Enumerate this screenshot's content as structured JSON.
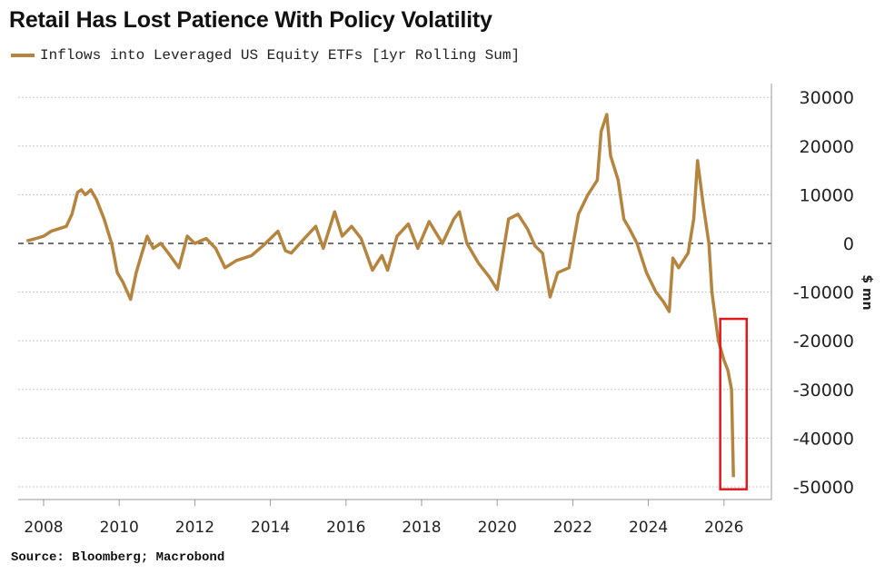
{
  "chart_data": {
    "type": "line",
    "title": "Retail Has Lost Patience With Policy Volatility",
    "legend": [
      "Inflows into Leveraged US Equity ETFs [1yr Rolling Sum]"
    ],
    "legend_placement": "top-left",
    "ylabel": "$ mn",
    "xlabel": "",
    "source": "Source: Bloomberg; Macrobond",
    "ylim": [
      -50000,
      30000
    ],
    "xlim": [
      2007.2,
      2027.1
    ],
    "yticks": [
      30000,
      20000,
      10000,
      0,
      -10000,
      -20000,
      -30000,
      -40000,
      -50000
    ],
    "xticks": [
      2008,
      2010,
      2012,
      2014,
      2016,
      2018,
      2020,
      2022,
      2024,
      2026
    ],
    "grid": true,
    "colors": {
      "series": "#b5853f",
      "highlight_box": "#e0191f"
    },
    "highlight_box": {
      "x_range": [
        2025.9,
        2026.6
      ],
      "y_range": [
        -50500,
        -15500
      ]
    },
    "series": [
      {
        "name": "Inflows into Leveraged US Equity ETFs [1yr Rolling Sum]",
        "x": [
          2007.55,
          2007.8,
          2008.0,
          2008.2,
          2008.4,
          2008.6,
          2008.75,
          2008.9,
          2009.0,
          2009.1,
          2009.25,
          2009.4,
          2009.6,
          2009.8,
          2009.95,
          2010.1,
          2010.3,
          2010.45,
          2010.6,
          2010.74,
          2010.9,
          2011.1,
          2011.3,
          2011.58,
          2011.8,
          2012.0,
          2012.3,
          2012.55,
          2012.8,
          2013.1,
          2013.5,
          2013.8,
          2014.2,
          2014.4,
          2014.55,
          2014.9,
          2015.2,
          2015.4,
          2015.7,
          2015.9,
          2016.15,
          2016.4,
          2016.7,
          2016.95,
          2017.1,
          2017.35,
          2017.65,
          2017.9,
          2018.2,
          2018.55,
          2018.85,
          2019.0,
          2019.2,
          2019.5,
          2019.8,
          2020.0,
          2020.3,
          2020.55,
          2020.8,
          2021.0,
          2021.2,
          2021.4,
          2021.6,
          2021.9,
          2022.15,
          2022.4,
          2022.65,
          2022.75,
          2022.9,
          2023.0,
          2023.2,
          2023.35,
          2023.5,
          2023.7,
          2023.95,
          2024.2,
          2024.4,
          2024.55,
          2024.65,
          2024.8,
          2025.05,
          2025.2,
          2025.3,
          2025.45,
          2025.6,
          2025.68,
          2025.85,
          2026.0,
          2026.1,
          2026.2,
          2026.25
        ],
        "values": [
          500,
          1000,
          1500,
          2500,
          3000,
          3500,
          6000,
          10500,
          11000,
          10000,
          11000,
          9000,
          5000,
          0,
          -6000,
          -8000,
          -11500,
          -6000,
          -2000,
          1500,
          -1000,
          0,
          -2000,
          -5000,
          1500,
          0,
          1000,
          -1000,
          -5000,
          -3500,
          -2500,
          -500,
          2500,
          -1500,
          -2000,
          1000,
          3500,
          -1000,
          6500,
          1500,
          3500,
          1000,
          -5500,
          -2500,
          -5500,
          1500,
          4000,
          -1000,
          4500,
          0,
          5000,
          6500,
          0,
          -4000,
          -7000,
          -9500,
          5000,
          6000,
          3000,
          -500,
          -2000,
          -11000,
          -6000,
          -5000,
          6000,
          10000,
          13000,
          23000,
          26500,
          18000,
          13000,
          5000,
          3000,
          0,
          -6000,
          -10000,
          -12000,
          -14000,
          -3000,
          -5000,
          -2000,
          5000,
          17000,
          8000,
          0,
          -10000,
          -20000,
          -24000,
          -26000,
          -30000,
          -48000
        ]
      }
    ]
  }
}
